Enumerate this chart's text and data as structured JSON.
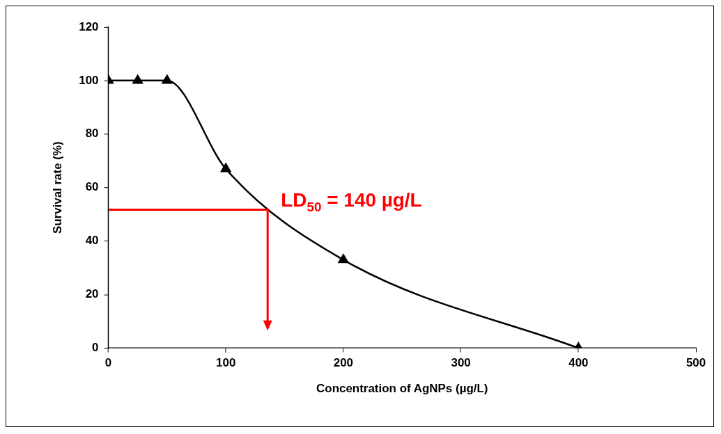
{
  "chart_data": {
    "type": "line",
    "xlabel": "Concentration of AgNPs (µg/L)",
    "ylabel": "Survival rate (%)",
    "xlim": [
      0,
      500
    ],
    "xticks": [
      0,
      100,
      200,
      300,
      400,
      500
    ],
    "ylim": [
      0,
      120
    ],
    "yticks": [
      0,
      20,
      40,
      60,
      80,
      100,
      120
    ],
    "grid": false,
    "legend": false,
    "series": [
      {
        "color": "#000000",
        "marker": "triangle",
        "x": [
          0,
          25,
          50,
          100,
          200,
          400
        ],
        "values": [
          100,
          100,
          100,
          67,
          33,
          0
        ]
      }
    ],
    "annotations": [
      {
        "text": "LD$_{50}$ = 140 µg/L",
        "x": 135,
        "y": 52
      }
    ]
  }
}
